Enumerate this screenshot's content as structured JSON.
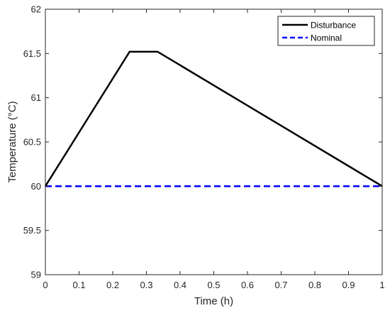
{
  "chart_data": {
    "type": "line",
    "xlabel": "Time (h)",
    "ylabel": "Temperature (°C)",
    "xlim": [
      0,
      1
    ],
    "ylim": [
      59,
      62
    ],
    "xticks": [
      "0",
      "0.1",
      "0.2",
      "0.3",
      "0.4",
      "0.5",
      "0.6",
      "0.7",
      "0.8",
      "0.9",
      "1"
    ],
    "yticks": [
      "59",
      "59.5",
      "60",
      "60.5",
      "61",
      "61.5",
      "62"
    ],
    "grid": false,
    "legend_position": "top-right",
    "series": [
      {
        "name": "Disturbance",
        "x": [
          0,
          0.25,
          0.333,
          1
        ],
        "y": [
          60,
          61.52,
          61.52,
          60
        ],
        "color": "#000000",
        "line_style": "solid"
      },
      {
        "name": "Nominal",
        "x": [
          0,
          1
        ],
        "y": [
          60,
          60
        ],
        "color": "#0000ff",
        "line_style": "dashed"
      }
    ]
  }
}
